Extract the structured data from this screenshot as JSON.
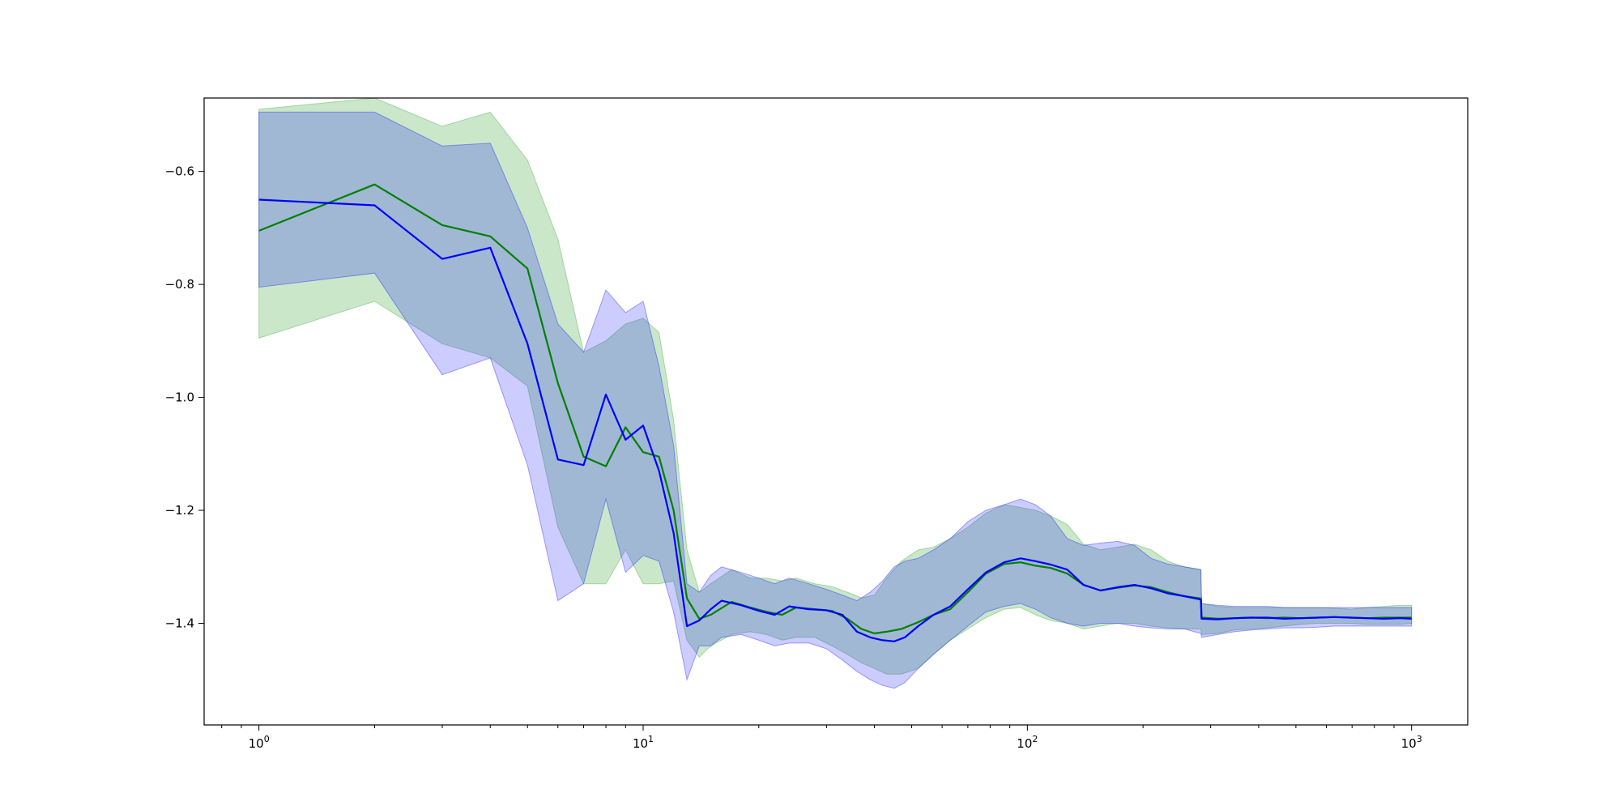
{
  "chart_data": {
    "type": "line",
    "title": "",
    "xlabel": "",
    "ylabel": "",
    "x_scale": "log",
    "xlim": [
      0.72,
      1400
    ],
    "ylim": [
      -1.58,
      -0.47
    ],
    "grid": false,
    "legend": "none",
    "x_ticks": [
      {
        "base": "10",
        "exp": "0",
        "value": 1
      },
      {
        "base": "10",
        "exp": "1",
        "value": 10
      },
      {
        "base": "10",
        "exp": "2",
        "value": 100
      },
      {
        "base": "10",
        "exp": "3",
        "value": 1000
      }
    ],
    "y_ticks": [
      {
        "label": "−0.6",
        "value": -0.6
      },
      {
        "label": "−0.8",
        "value": -0.8
      },
      {
        "label": "−1.0",
        "value": -1.0
      },
      {
        "label": "−1.2",
        "value": -1.2
      },
      {
        "label": "−1.4",
        "value": -1.4
      }
    ],
    "series": [
      {
        "color": "#008000",
        "band_color": "#2ca02c",
        "band_opacity": 0.25,
        "x": [
          1,
          2,
          3,
          4,
          5,
          6,
          7,
          8,
          9,
          10,
          11,
          12,
          13,
          14,
          15,
          17,
          19,
          21,
          23,
          25,
          28,
          31,
          34,
          37,
          40,
          43,
          47,
          52,
          57,
          63,
          70,
          78,
          87,
          96,
          105,
          115,
          127,
          140,
          155,
          172,
          190,
          210,
          232,
          256,
          283,
          284,
          313,
          346,
          382,
          422,
          466,
          515,
          569,
          628,
          694,
          767,
          847,
          935,
          1000
        ],
        "y": [
          -0.705,
          -0.623,
          -0.695,
          -0.715,
          -0.772,
          -0.975,
          -1.105,
          -1.122,
          -1.053,
          -1.097,
          -1.105,
          -1.2,
          -1.356,
          -1.392,
          -1.385,
          -1.362,
          -1.372,
          -1.38,
          -1.385,
          -1.372,
          -1.375,
          -1.378,
          -1.392,
          -1.41,
          -1.418,
          -1.415,
          -1.41,
          -1.398,
          -1.385,
          -1.375,
          -1.345,
          -1.312,
          -1.295,
          -1.292,
          -1.298,
          -1.302,
          -1.312,
          -1.332,
          -1.342,
          -1.337,
          -1.333,
          -1.336,
          -1.345,
          -1.352,
          -1.356,
          -1.39,
          -1.392,
          -1.391,
          -1.39,
          -1.391,
          -1.39,
          -1.391,
          -1.39,
          -1.389,
          -1.39,
          -1.391,
          -1.39,
          -1.39,
          -1.39
        ],
        "lower": [
          -0.895,
          -0.83,
          -0.905,
          -0.93,
          -0.98,
          -1.23,
          -1.33,
          -1.33,
          -1.27,
          -1.33,
          -1.33,
          -1.325,
          -1.43,
          -1.46,
          -1.44,
          -1.42,
          -1.415,
          -1.42,
          -1.43,
          -1.425,
          -1.425,
          -1.44,
          -1.455,
          -1.47,
          -1.48,
          -1.49,
          -1.49,
          -1.48,
          -1.455,
          -1.43,
          -1.41,
          -1.39,
          -1.375,
          -1.372,
          -1.385,
          -1.395,
          -1.4,
          -1.41,
          -1.405,
          -1.4,
          -1.4,
          -1.405,
          -1.408,
          -1.41,
          -1.41,
          -1.42,
          -1.418,
          -1.412,
          -1.41,
          -1.408,
          -1.405,
          -1.402,
          -1.4,
          -1.4,
          -1.4,
          -1.402,
          -1.402,
          -1.402,
          -1.4
        ],
        "upper": [
          -0.49,
          -0.47,
          -0.52,
          -0.495,
          -0.58,
          -0.72,
          -0.92,
          -0.9,
          -0.87,
          -0.86,
          -0.885,
          -1.04,
          -1.27,
          -1.345,
          -1.33,
          -1.305,
          -1.32,
          -1.32,
          -1.325,
          -1.32,
          -1.33,
          -1.335,
          -1.345,
          -1.355,
          -1.35,
          -1.32,
          -1.29,
          -1.27,
          -1.265,
          -1.25,
          -1.23,
          -1.205,
          -1.19,
          -1.195,
          -1.2,
          -1.21,
          -1.225,
          -1.26,
          -1.27,
          -1.265,
          -1.26,
          -1.27,
          -1.29,
          -1.3,
          -1.305,
          -1.365,
          -1.37,
          -1.372,
          -1.372,
          -1.372,
          -1.372,
          -1.372,
          -1.372,
          -1.373,
          -1.375,
          -1.372,
          -1.37,
          -1.368,
          -1.368
        ]
      },
      {
        "color": "#0000ff",
        "band_color": "#0000ff",
        "band_opacity": 0.2,
        "x": [
          1,
          2,
          3,
          4,
          5,
          6,
          7,
          8,
          9,
          10,
          11,
          12,
          13,
          14,
          15,
          16,
          18,
          20,
          22,
          24,
          27,
          30,
          33,
          36,
          39,
          42,
          45,
          48,
          52,
          57,
          63,
          70,
          78,
          87,
          96,
          105,
          115,
          127,
          140,
          155,
          172,
          190,
          210,
          232,
          256,
          283,
          284,
          313,
          346,
          382,
          422,
          466,
          515,
          569,
          628,
          694,
          767,
          847,
          935,
          1000
        ],
        "y": [
          -0.65,
          -0.66,
          -0.755,
          -0.735,
          -0.905,
          -1.11,
          -1.12,
          -0.995,
          -1.075,
          -1.05,
          -1.13,
          -1.24,
          -1.405,
          -1.395,
          -1.375,
          -1.36,
          -1.368,
          -1.378,
          -1.385,
          -1.37,
          -1.375,
          -1.377,
          -1.385,
          -1.415,
          -1.425,
          -1.43,
          -1.432,
          -1.425,
          -1.405,
          -1.385,
          -1.37,
          -1.34,
          -1.31,
          -1.292,
          -1.285,
          -1.29,
          -1.296,
          -1.305,
          -1.332,
          -1.342,
          -1.336,
          -1.332,
          -1.338,
          -1.347,
          -1.352,
          -1.358,
          -1.392,
          -1.393,
          -1.391,
          -1.39,
          -1.39,
          -1.392,
          -1.391,
          -1.39,
          -1.389,
          -1.39,
          -1.391,
          -1.392,
          -1.391,
          -1.392
        ],
        "lower": [
          -0.805,
          -0.78,
          -0.96,
          -0.93,
          -1.12,
          -1.36,
          -1.33,
          -1.18,
          -1.31,
          -1.28,
          -1.29,
          -1.38,
          -1.5,
          -1.44,
          -1.44,
          -1.425,
          -1.42,
          -1.43,
          -1.44,
          -1.435,
          -1.435,
          -1.445,
          -1.465,
          -1.485,
          -1.5,
          -1.51,
          -1.515,
          -1.505,
          -1.48,
          -1.455,
          -1.43,
          -1.405,
          -1.38,
          -1.37,
          -1.365,
          -1.375,
          -1.39,
          -1.4,
          -1.405,
          -1.4,
          -1.4,
          -1.405,
          -1.408,
          -1.41,
          -1.41,
          -1.418,
          -1.425,
          -1.42,
          -1.415,
          -1.412,
          -1.41,
          -1.408,
          -1.408,
          -1.407,
          -1.405,
          -1.405,
          -1.405,
          -1.405,
          -1.405,
          -1.405
        ],
        "upper": [
          -0.495,
          -0.495,
          -0.555,
          -0.55,
          -0.7,
          -0.87,
          -0.92,
          -0.81,
          -0.85,
          -0.83,
          -0.945,
          -1.085,
          -1.33,
          -1.345,
          -1.315,
          -1.3,
          -1.31,
          -1.32,
          -1.33,
          -1.32,
          -1.33,
          -1.34,
          -1.35,
          -1.36,
          -1.345,
          -1.325,
          -1.3,
          -1.29,
          -1.285,
          -1.27,
          -1.25,
          -1.22,
          -1.2,
          -1.19,
          -1.18,
          -1.19,
          -1.21,
          -1.25,
          -1.262,
          -1.258,
          -1.255,
          -1.262,
          -1.285,
          -1.295,
          -1.3,
          -1.305,
          -1.365,
          -1.368,
          -1.37,
          -1.37,
          -1.37,
          -1.372,
          -1.372,
          -1.372,
          -1.372,
          -1.372,
          -1.372,
          -1.372,
          -1.372,
          -1.372
        ]
      }
    ]
  }
}
